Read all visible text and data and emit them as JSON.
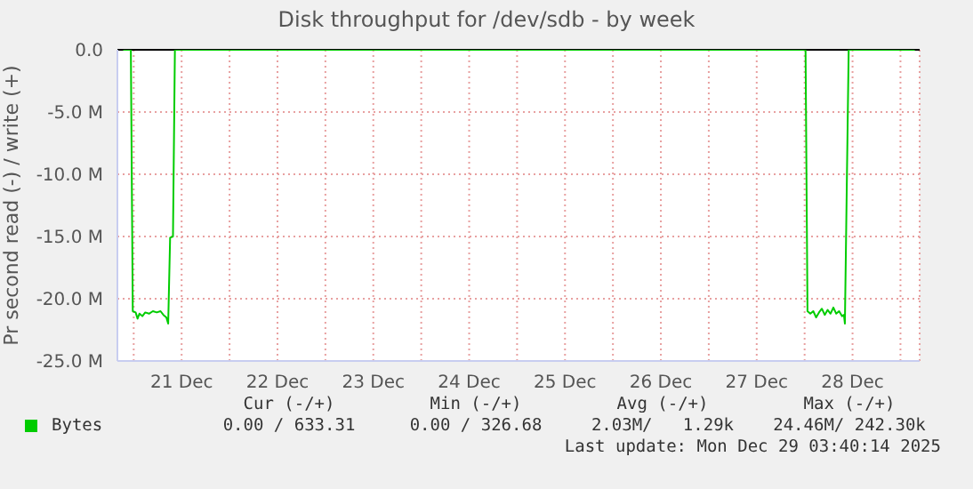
{
  "chart_data": {
    "type": "line",
    "title": "Disk throughput for /dev/sdb - by week",
    "ylabel": "Pr second read (-) / write (+)",
    "x": [
      "2025-12-20T21:22",
      "2025-12-20T23:17",
      "2025-12-20T23:46",
      "2025-12-21T00:29",
      "2025-12-21T00:58",
      "2025-12-21T01:26",
      "2025-12-21T02:10",
      "2025-12-21T02:53",
      "2025-12-21T03:50",
      "2025-12-21T04:48",
      "2025-12-21T05:46",
      "2025-12-21T06:43",
      "2025-12-21T07:26",
      "2025-12-21T08:10",
      "2025-12-21T08:38",
      "2025-12-21T09:07",
      "2025-12-21T09:50",
      "2025-12-21T10:19",
      "2025-12-28T00:14",
      "2025-12-28T00:43",
      "2025-12-28T01:26",
      "2025-12-28T02:10",
      "2025-12-28T02:53",
      "2025-12-28T03:36",
      "2025-12-28T04:19",
      "2025-12-28T05:02",
      "2025-12-28T05:46",
      "2025-12-28T06:29",
      "2025-12-28T07:12",
      "2025-12-28T07:55",
      "2025-12-28T08:38",
      "2025-12-28T09:22",
      "2025-12-28T09:50",
      "2025-12-28T10:05",
      "2025-12-28T11:02",
      "2025-12-29T03:36"
    ],
    "series": [
      {
        "name": "Bytes",
        "color": "#00cc00",
        "values": [
          0,
          0,
          -21.0,
          -21.1,
          -21.6,
          -21.2,
          -21.4,
          -21.1,
          -21.2,
          -21.0,
          -21.1,
          -21.0,
          -21.3,
          -21.5,
          -22.0,
          -15.1,
          -15.0,
          0,
          0,
          -21.0,
          -21.2,
          -21.0,
          -21.5,
          -21.1,
          -20.8,
          -21.3,
          -20.9,
          -21.2,
          -20.7,
          -21.2,
          -21.0,
          -21.4,
          -21.3,
          -22.0,
          0,
          0
        ]
      }
    ],
    "xlim": [
      "2025-12-20T19:55",
      "2025-12-29T04:48"
    ],
    "xticks": [
      {
        "value": "2025-12-21",
        "label": null
      },
      {
        "value": "2025-12-21T12:00",
        "label": "21 Dec"
      },
      {
        "value": "2025-12-22",
        "label": null
      },
      {
        "value": "2025-12-22T12:00",
        "label": "22 Dec"
      },
      {
        "value": "2025-12-23",
        "label": null
      },
      {
        "value": "2025-12-23T12:00",
        "label": "23 Dec"
      },
      {
        "value": "2025-12-24",
        "label": null
      },
      {
        "value": "2025-12-24T12:00",
        "label": "24 Dec"
      },
      {
        "value": "2025-12-25",
        "label": null
      },
      {
        "value": "2025-12-25T12:00",
        "label": "25 Dec"
      },
      {
        "value": "2025-12-26",
        "label": null
      },
      {
        "value": "2025-12-26T12:00",
        "label": "26 Dec"
      },
      {
        "value": "2025-12-27",
        "label": null
      },
      {
        "value": "2025-12-27T12:00",
        "label": "27 Dec"
      },
      {
        "value": "2025-12-28",
        "label": null
      },
      {
        "value": "2025-12-28T12:00",
        "label": "28 Dec"
      },
      {
        "value": "2025-12-29",
        "label": null
      }
    ],
    "ylim": [
      -25,
      0
    ],
    "yticks": [
      {
        "value": -25,
        "label": "-25.0 M"
      },
      {
        "value": -20,
        "label": "-20.0 M"
      },
      {
        "value": -15,
        "label": "-15.0 M"
      },
      {
        "value": -10,
        "label": "-10.0 M"
      },
      {
        "value": -5,
        "label": "-5.0 M"
      },
      {
        "value": 0,
        "label": "0.0"
      }
    ],
    "ref_lines": [
      {
        "axis": "y",
        "value": 0,
        "color": "#000000"
      }
    ],
    "grid": true,
    "legend": "bottom left",
    "marker": "none",
    "line_style": "solid",
    "annotations": [
      "Cur (-/+)",
      "Min (-/+)",
      "Avg (-/+)",
      "Max (-/+)",
      "0.00 / 633.31",
      "0.00 / 326.68",
      "2.03M/   1.29k",
      "24.46M/ 242.30k",
      "Last update: Mon Dec 29 03:40:14 2025"
    ]
  }
}
